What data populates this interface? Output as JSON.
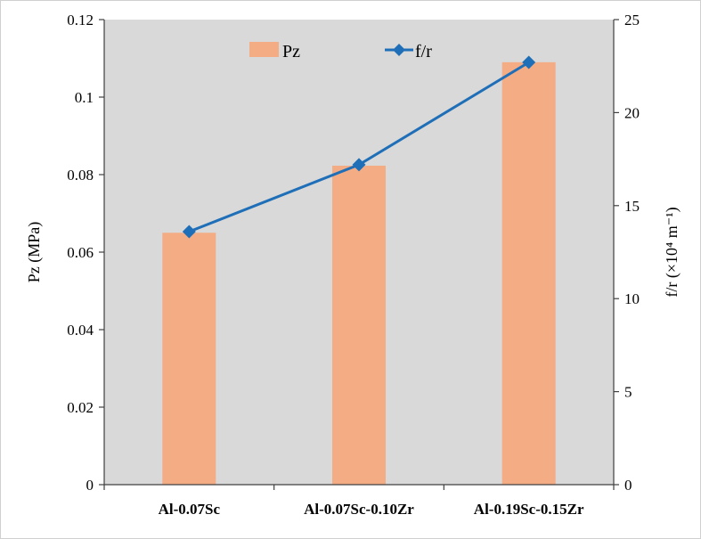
{
  "chart_data": {
    "type": "bar",
    "categories": [
      "Al-0.07Sc",
      "Al-0.07Sc-0.10Zr",
      "Al-0.19Sc-0.15Zr"
    ],
    "series": [
      {
        "name": "Pz",
        "type": "bar",
        "axis": "left",
        "values": [
          0.065,
          0.0823,
          0.109
        ],
        "color": "#f4ac84"
      },
      {
        "name": "f/r",
        "type": "line",
        "axis": "right",
        "marker": "diamond",
        "values": [
          13.6,
          17.2,
          22.7
        ],
        "color": "#1f6fb8"
      }
    ],
    "ylabel": "Pz (MPa)",
    "ylabel_right": "f/r (×10⁴ m⁻¹)",
    "ylim": [
      0,
      0.12
    ],
    "ylim_right": [
      0,
      25
    ],
    "yticks": [
      "0",
      "0.02",
      "0.04",
      "0.06",
      "0.08",
      "0.1",
      "0.12"
    ],
    "yticks_right": [
      "0",
      "5",
      "10",
      "15",
      "20",
      "25"
    ],
    "plot_background": "#d9d9d9",
    "grid": false,
    "legend": "top-center"
  }
}
